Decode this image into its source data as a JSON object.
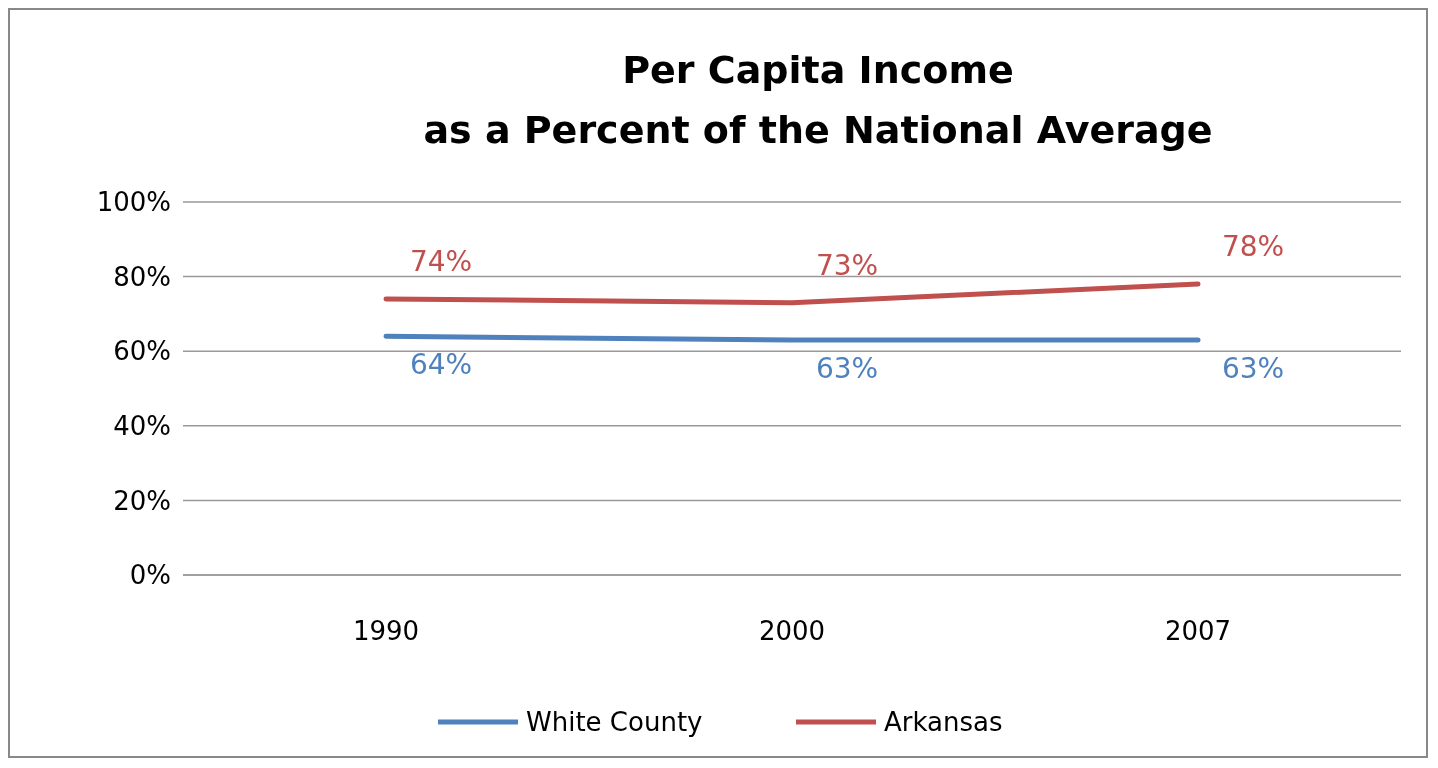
{
  "chart_data": {
    "type": "line",
    "title": "Per Capita Income\nas a Percent of the National Average",
    "categories": [
      "1990",
      "2000",
      "2007"
    ],
    "series": [
      {
        "name": "White County",
        "color": "#4f81bd",
        "values": [
          64,
          63,
          63
        ],
        "value_labels": [
          "64%",
          "63%",
          "63%"
        ]
      },
      {
        "name": "Arkansas",
        "color": "#c0504d",
        "values": [
          74,
          73,
          78
        ],
        "value_labels": [
          "74%",
          "73%",
          "78%"
        ]
      }
    ],
    "ylim": [
      0,
      100
    ],
    "yticks": [
      {
        "value": 0,
        "label": "0%"
      },
      {
        "value": 20,
        "label": "20%"
      },
      {
        "value": 40,
        "label": "40%"
      },
      {
        "value": 60,
        "label": "60%"
      },
      {
        "value": 80,
        "label": "80%"
      },
      {
        "value": 100,
        "label": "100%"
      }
    ],
    "grid": "y",
    "legend": "bottom",
    "marker": "none",
    "line_style": "solid"
  }
}
